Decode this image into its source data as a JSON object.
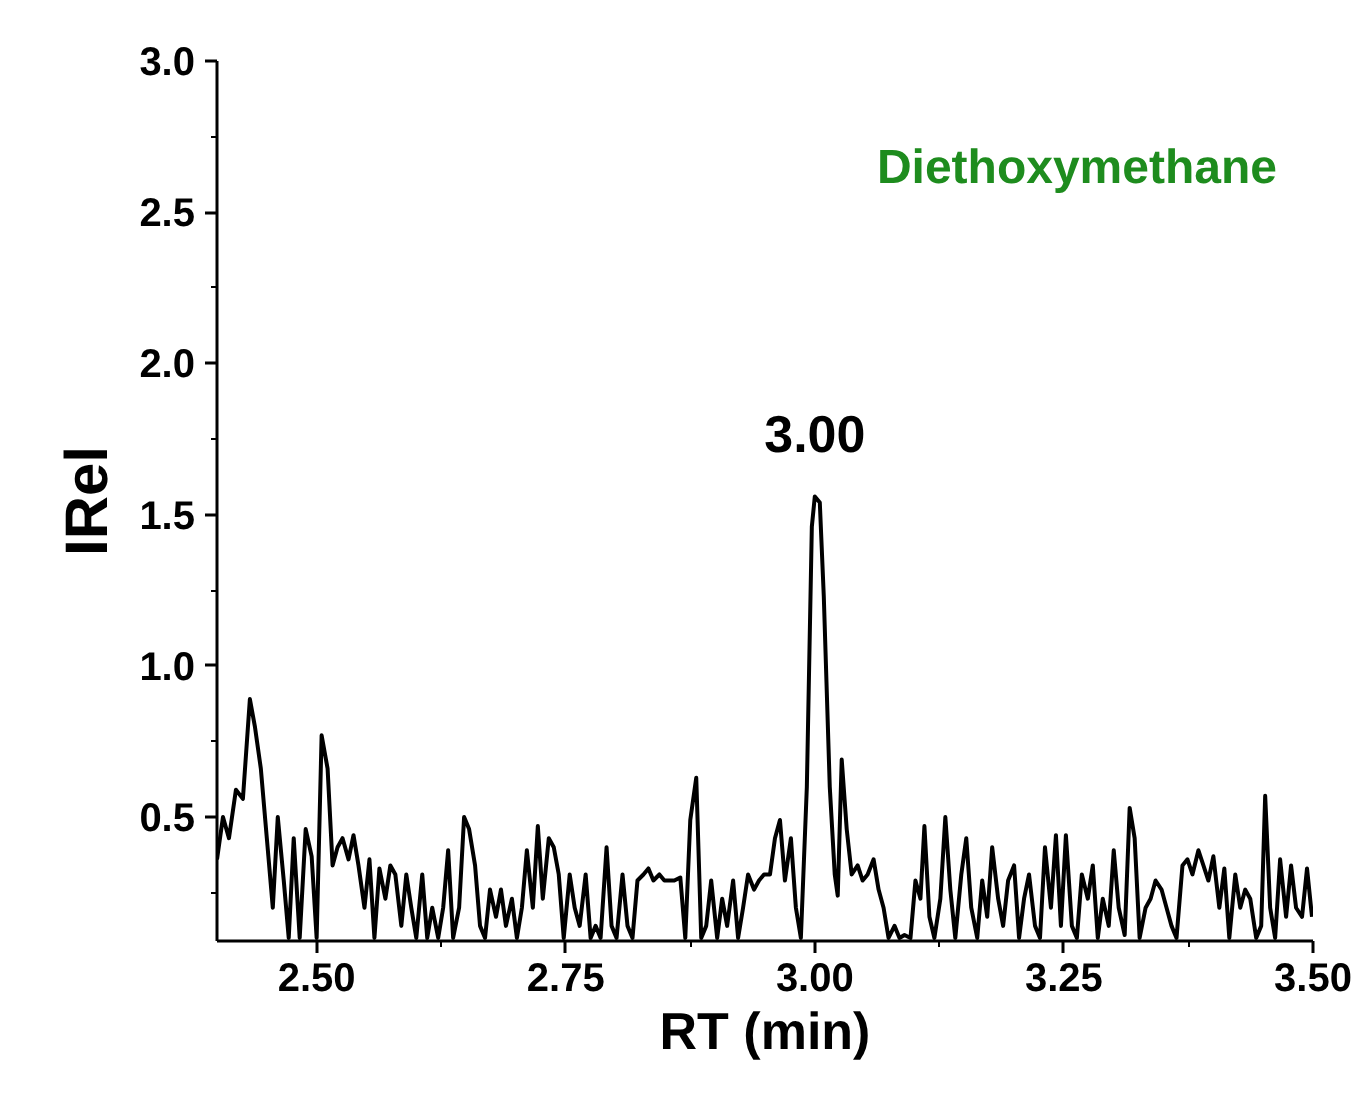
{
  "chart_data": {
    "type": "line",
    "xlabel": "RT (min)",
    "ylabel": "IRel",
    "annotations": [
      {
        "text": "3.00",
        "x": 3.0,
        "y": 1.56
      },
      "Diethoxymethane"
    ],
    "xlim": [
      2.4,
      3.5
    ],
    "ylim": [
      0.09,
      3.0
    ],
    "xticks": [
      {
        "value": 2.5,
        "label": "2.50"
      },
      {
        "value": 2.75,
        "label": "2.75"
      },
      {
        "value": 3.0,
        "label": "3.00"
      },
      {
        "value": 3.25,
        "label": "3.25"
      },
      {
        "value": 3.5,
        "label": "3.50"
      }
    ],
    "yticks": [
      0.5,
      {
        "value": 1,
        "label": "1.0"
      },
      1.5,
      {
        "value": 2,
        "label": "2.0"
      },
      2.5,
      {
        "value": 3,
        "label": "3.0"
      }
    ],
    "grid": false,
    "marker": "none",
    "line_style": "solid",
    "series": [
      {
        "color": "#000000",
        "x": [
          2.4,
          2.406,
          2.412,
          2.419,
          2.426,
          2.433,
          2.438,
          2.444,
          2.45,
          2.456,
          2.461,
          2.467,
          2.472,
          2.477,
          2.483,
          2.489,
          2.495,
          2.5,
          2.505,
          2.511,
          2.516,
          2.521,
          2.526,
          2.532,
          2.537,
          2.542,
          2.548,
          2.553,
          2.558,
          2.563,
          2.569,
          2.574,
          2.579,
          2.585,
          2.59,
          2.595,
          2.6,
          2.606,
          2.611,
          2.616,
          2.622,
          2.627,
          2.632,
          2.637,
          2.643,
          2.648,
          2.653,
          2.659,
          2.664,
          2.669,
          2.674,
          2.68,
          2.685,
          2.69,
          2.696,
          2.701,
          2.706,
          2.711,
          2.717,
          2.722,
          2.727,
          2.733,
          2.738,
          2.743,
          2.748,
          2.754,
          2.759,
          2.764,
          2.77,
          2.775,
          2.78,
          2.785,
          2.791,
          2.796,
          2.801,
          2.807,
          2.812,
          2.817,
          2.822,
          2.828,
          2.833,
          2.838,
          2.844,
          2.849,
          2.854,
          2.859,
          2.865,
          2.87,
          2.875,
          2.881,
          2.886,
          2.891,
          2.896,
          2.902,
          2.907,
          2.912,
          2.918,
          2.923,
          2.928,
          2.933,
          2.939,
          2.944,
          2.949,
          2.955,
          2.96,
          2.965,
          2.97,
          2.976,
          2.981,
          2.986,
          2.992,
          2.997,
          3.0,
          3.005,
          3.009,
          3.015,
          3.02,
          3.023,
          3.027,
          3.032,
          3.037,
          3.043,
          3.048,
          3.053,
          3.059,
          3.064,
          3.069,
          3.074,
          3.08,
          3.085,
          3.09,
          3.096,
          3.101,
          3.106,
          3.11,
          3.115,
          3.12,
          3.126,
          3.131,
          3.136,
          3.141,
          3.147,
          3.152,
          3.157,
          3.163,
          3.168,
          3.173,
          3.178,
          3.184,
          3.189,
          3.194,
          3.2,
          3.205,
          3.21,
          3.215,
          3.221,
          3.226,
          3.231,
          3.237,
          3.242,
          3.247,
          3.252,
          3.258,
          3.263,
          3.268,
          3.274,
          3.279,
          3.284,
          3.289,
          3.295,
          3.3,
          3.305,
          3.311,
          3.316,
          3.321,
          3.326,
          3.332,
          3.337,
          3.342,
          3.348,
          3.353,
          3.358,
          3.363,
          3.369,
          3.374,
          3.379,
          3.385,
          3.39,
          3.395,
          3.4,
          3.406,
          3.411,
          3.416,
          3.422,
          3.427,
          3.432,
          3.437,
          3.443,
          3.448,
          3.452,
          3.457,
          3.462,
          3.467,
          3.473,
          3.478,
          3.483,
          3.489,
          3.494,
          3.499
        ],
        "values": [
          0.36,
          0.5,
          0.43,
          0.59,
          0.56,
          0.89,
          0.8,
          0.66,
          0.43,
          0.2,
          0.5,
          0.29,
          0.1,
          0.43,
          0.1,
          0.46,
          0.37,
          0.1,
          0.77,
          0.66,
          0.34,
          0.4,
          0.43,
          0.36,
          0.44,
          0.34,
          0.2,
          0.36,
          0.1,
          0.33,
          0.23,
          0.34,
          0.31,
          0.14,
          0.31,
          0.2,
          0.1,
          0.31,
          0.1,
          0.2,
          0.1,
          0.2,
          0.39,
          0.1,
          0.2,
          0.5,
          0.46,
          0.34,
          0.14,
          0.1,
          0.26,
          0.17,
          0.26,
          0.14,
          0.23,
          0.1,
          0.2,
          0.39,
          0.2,
          0.47,
          0.23,
          0.43,
          0.4,
          0.31,
          0.1,
          0.31,
          0.2,
          0.14,
          0.31,
          0.1,
          0.14,
          0.1,
          0.4,
          0.14,
          0.1,
          0.31,
          0.14,
          0.1,
          0.29,
          0.31,
          0.33,
          0.29,
          0.31,
          0.29,
          0.29,
          0.29,
          0.3,
          0.1,
          0.49,
          0.63,
          0.1,
          0.14,
          0.29,
          0.1,
          0.23,
          0.14,
          0.29,
          0.1,
          0.2,
          0.31,
          0.26,
          0.29,
          0.31,
          0.31,
          0.43,
          0.49,
          0.29,
          0.43,
          0.2,
          0.1,
          0.6,
          1.46,
          1.56,
          1.54,
          1.23,
          0.6,
          0.31,
          0.24,
          0.69,
          0.46,
          0.31,
          0.34,
          0.29,
          0.31,
          0.36,
          0.26,
          0.2,
          0.1,
          0.14,
          0.1,
          0.11,
          0.1,
          0.29,
          0.23,
          0.47,
          0.17,
          0.1,
          0.23,
          0.5,
          0.26,
          0.1,
          0.31,
          0.43,
          0.2,
          0.1,
          0.29,
          0.17,
          0.4,
          0.23,
          0.14,
          0.29,
          0.34,
          0.1,
          0.23,
          0.31,
          0.14,
          0.1,
          0.4,
          0.2,
          0.44,
          0.14,
          0.44,
          0.14,
          0.1,
          0.31,
          0.23,
          0.34,
          0.1,
          0.23,
          0.14,
          0.39,
          0.2,
          0.11,
          0.53,
          0.43,
          0.1,
          0.2,
          0.23,
          0.29,
          0.26,
          0.2,
          0.14,
          0.1,
          0.34,
          0.36,
          0.31,
          0.39,
          0.34,
          0.29,
          0.37,
          0.2,
          0.33,
          0.1,
          0.31,
          0.2,
          0.26,
          0.23,
          0.1,
          0.14,
          0.57,
          0.2,
          0.1,
          0.36,
          0.17,
          0.34,
          0.2,
          0.17,
          0.33,
          0.17
        ]
      }
    ]
  }
}
